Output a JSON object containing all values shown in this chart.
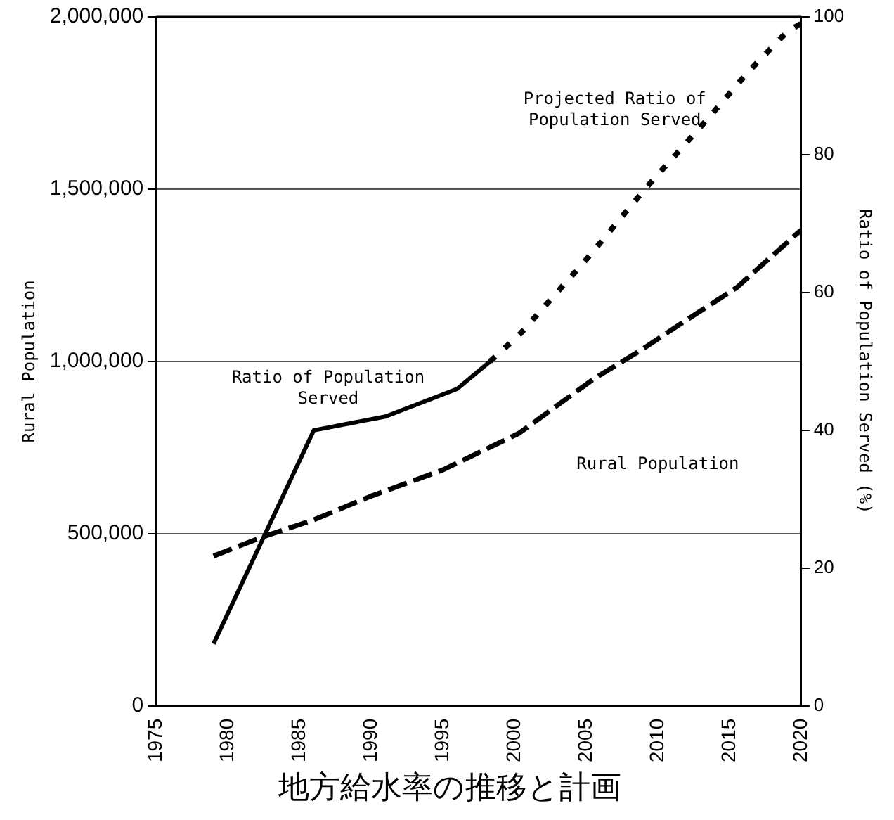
{
  "chart_data": {
    "type": "line",
    "title": "地方給水率の推移と計画",
    "ylabel": "Rural Population",
    "y2label": "Ratio of Population Served (%)",
    "xlim": [
      1975,
      2020
    ],
    "xticks": [
      1975,
      1980,
      1985,
      1990,
      1995,
      2000,
      2005,
      2010,
      2015,
      2020
    ],
    "ylim": [
      0,
      2000000
    ],
    "yticks": [
      0,
      {
        "value": 500000,
        "label": "500,000"
      },
      {
        "value": 1000000,
        "label": "1,000,000"
      },
      {
        "value": 1500000,
        "label": "1,500,000"
      },
      {
        "value": 2000000,
        "label": "2,000,000"
      }
    ],
    "y2lim": [
      0,
      100
    ],
    "y2ticks": [
      0,
      20,
      40,
      60,
      80,
      100
    ],
    "grid": "y",
    "legend": false,
    "marker": "none",
    "series": [
      {
        "name": "Ratio of Population Served",
        "color": "#000000",
        "axis": "y2",
        "line_style": "solid",
        "x": [
          1979,
          1986,
          1991,
          1996,
          1998.3
        ],
        "values": [
          9,
          40,
          42,
          46,
          50
        ]
      },
      {
        "name": "Projected Ratio of Population Served",
        "color": "#000000",
        "axis": "y2",
        "line_style": "dotted",
        "x": [
          1998.3,
          2000.4,
          2005.1,
          2009.1,
          2013.4,
          2016.3,
          2019.1,
          2020
        ],
        "values": [
          50,
          54,
          65,
          75,
          85,
          92,
          98,
          99
        ]
      },
      {
        "name": "Rural Population",
        "color": "#000000",
        "line_style": "dashed",
        "x": [
          1979,
          1982.4,
          1986,
          1990,
          1995,
          2000.3,
          2005.6,
          2008.8,
          2012,
          2015.5,
          2019.8,
          2020
        ],
        "values": [
          435000,
          490000,
          540000,
          609000,
          685000,
          791000,
          951000,
          1032000,
          1120000,
          1214000,
          1374000,
          1380000
        ]
      }
    ]
  }
}
